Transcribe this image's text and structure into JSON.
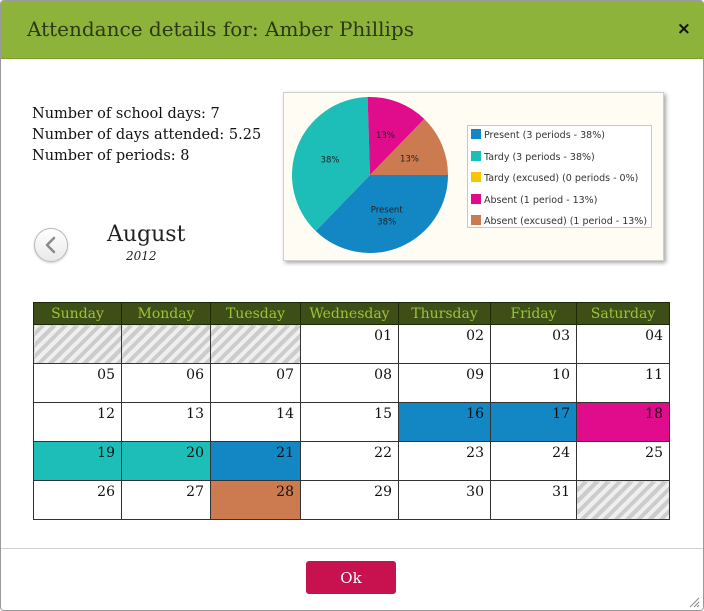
{
  "dialog": {
    "title": "Attendance details for: Amber Phillips",
    "close_label": "×",
    "ok_label": "Ok"
  },
  "stats": {
    "school_days": "Number of school days: 7",
    "days_attended": "Number of days attended: 5.25",
    "periods": "Number of periods: 8"
  },
  "calendar": {
    "month": "August",
    "year": "2012",
    "weekdays": [
      "Sunday",
      "Monday",
      "Tuesday",
      "Wednesday",
      "Thursday",
      "Friday",
      "Saturday"
    ],
    "weeks": [
      [
        {
          "d": ""
        },
        {
          "d": ""
        },
        {
          "d": ""
        },
        {
          "d": "01"
        },
        {
          "d": "02"
        },
        {
          "d": "03"
        },
        {
          "d": "04"
        }
      ],
      [
        {
          "d": "05"
        },
        {
          "d": "06"
        },
        {
          "d": "07"
        },
        {
          "d": "08"
        },
        {
          "d": "09"
        },
        {
          "d": "10"
        },
        {
          "d": "11"
        }
      ],
      [
        {
          "d": "12"
        },
        {
          "d": "13"
        },
        {
          "d": "14"
        },
        {
          "d": "15"
        },
        {
          "d": "16",
          "s": "present"
        },
        {
          "d": "17",
          "s": "present"
        },
        {
          "d": "18",
          "s": "absent"
        }
      ],
      [
        {
          "d": "19",
          "s": "tardy"
        },
        {
          "d": "20",
          "s": "tardy"
        },
        {
          "d": "21",
          "s": "present"
        },
        {
          "d": "22"
        },
        {
          "d": "23"
        },
        {
          "d": "24"
        },
        {
          "d": "25"
        }
      ],
      [
        {
          "d": "26"
        },
        {
          "d": "27"
        },
        {
          "d": "28",
          "s": "absent_excused"
        },
        {
          "d": "29"
        },
        {
          "d": "30"
        },
        {
          "d": "31"
        },
        {
          "d": ""
        }
      ]
    ]
  },
  "colors": {
    "present": "#1287c4",
    "tardy": "#1dbeb8",
    "tardy_excused": "#f7c600",
    "absent": "#e00c8c",
    "absent_excused": "#cc7a50"
  },
  "chart_data": {
    "type": "pie",
    "slices": [
      {
        "name": "Present",
        "value": 38,
        "percent_label": "38%",
        "color": "#1287c4",
        "legend": "Present (3 periods - 38%)"
      },
      {
        "name": "Tardy",
        "value": 38,
        "percent_label": "38%",
        "color": "#1dbeb8",
        "legend": "Tardy (3 periods - 38%)"
      },
      {
        "name": "Tardy (excused)",
        "value": 0,
        "percent_label": "",
        "color": "#f7c600",
        "legend": "Tardy (excused) (0 periods - 0%)"
      },
      {
        "name": "Absent",
        "value": 13,
        "percent_label": "13%",
        "color": "#e00c8c",
        "legend": "Absent (1 period - 13%)"
      },
      {
        "name": "Absent (excused)",
        "value": 13,
        "percent_label": "13%",
        "color": "#cc7a50",
        "legend": "Absent (excused) (1 period - 13%)"
      }
    ],
    "slice_text": {
      "present_name": "Present"
    },
    "legend_position": "right"
  }
}
